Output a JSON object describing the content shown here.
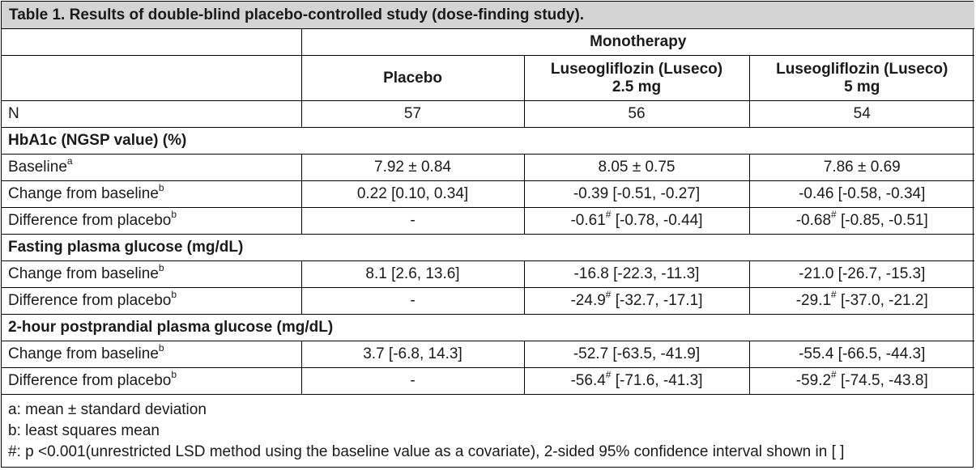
{
  "title": "Table 1. Results of double-blind placebo-controlled study (dose-finding study).",
  "header": {
    "group": "Monotherapy",
    "placebo": "Placebo",
    "dose1_line1": "Luseogliflozin (Luseco)",
    "dose1_line2": "2.5 mg",
    "dose2_line1": "Luseogliflozin (Luseco)",
    "dose2_line2": "5 mg"
  },
  "n_row": {
    "label": "N",
    "placebo": "57",
    "dose1": "56",
    "dose2": "54"
  },
  "sections": [
    {
      "heading": "HbA1c (NGSP value) (%)",
      "rows": [
        {
          "label": "Baseline",
          "sup": "a",
          "placebo": "7.92 ± 0.84",
          "d1_main": "8.05 ± 0.75",
          "d1_sup": "",
          "d1_rest": "",
          "d2_main": "7.86 ± 0.69",
          "d2_sup": "",
          "d2_rest": ""
        },
        {
          "label": "Change from baseline",
          "sup": "b",
          "placebo": "0.22 [0.10, 0.34]",
          "d1_main": "-0.39 [-0.51, -0.27]",
          "d1_sup": "",
          "d1_rest": "",
          "d2_main": "-0.46 [-0.58, -0.34]",
          "d2_sup": "",
          "d2_rest": ""
        },
        {
          "label": "Difference from placebo",
          "sup": "b",
          "placebo": "-",
          "d1_main": "-0.61",
          "d1_sup": "#",
          "d1_rest": " [-0.78, -0.44]",
          "d2_main": "-0.68",
          "d2_sup": "#",
          "d2_rest": " [-0.85, -0.51]"
        }
      ]
    },
    {
      "heading": "Fasting plasma glucose (mg/dL)",
      "rows": [
        {
          "label": "Change from baseline",
          "sup": "b",
          "placebo": "8.1 [2.6, 13.6]",
          "d1_main": "-16.8 [-22.3, -11.3]",
          "d1_sup": "",
          "d1_rest": "",
          "d2_main": "-21.0 [-26.7, -15.3]",
          "d2_sup": "",
          "d2_rest": ""
        },
        {
          "label": "Difference from placebo",
          "sup": "b",
          "placebo": "-",
          "d1_main": "-24.9",
          "d1_sup": "#",
          "d1_rest": " [-32.7, -17.1]",
          "d2_main": "-29.1",
          "d2_sup": "#",
          "d2_rest": " [-37.0, -21.2]"
        }
      ]
    },
    {
      "heading": "2-hour postprandial plasma glucose (mg/dL)",
      "rows": [
        {
          "label": "Change from baseline",
          "sup": "b",
          "placebo": "3.7 [-6.8, 14.3]",
          "d1_main": "-52.7 [-63.5, -41.9]",
          "d1_sup": "",
          "d1_rest": "",
          "d2_main": "-55.4 [-66.5, -44.3]",
          "d2_sup": "",
          "d2_rest": ""
        },
        {
          "label": "Difference from placebo",
          "sup": "b",
          "placebo": "-",
          "d1_main": "-56.4",
          "d1_sup": "#",
          "d1_rest": " [-71.6, -41.3]",
          "d2_main": "-59.2",
          "d2_sup": "#",
          "d2_rest": " [-74.5, -43.8]"
        }
      ]
    }
  ],
  "notes": [
    "a: mean ± standard deviation",
    "b: least squares mean",
    "#: p <0.001(unrestricted LSD method using the baseline value as a covariate), 2-sided 95% confidence interval shown in [ ]"
  ]
}
